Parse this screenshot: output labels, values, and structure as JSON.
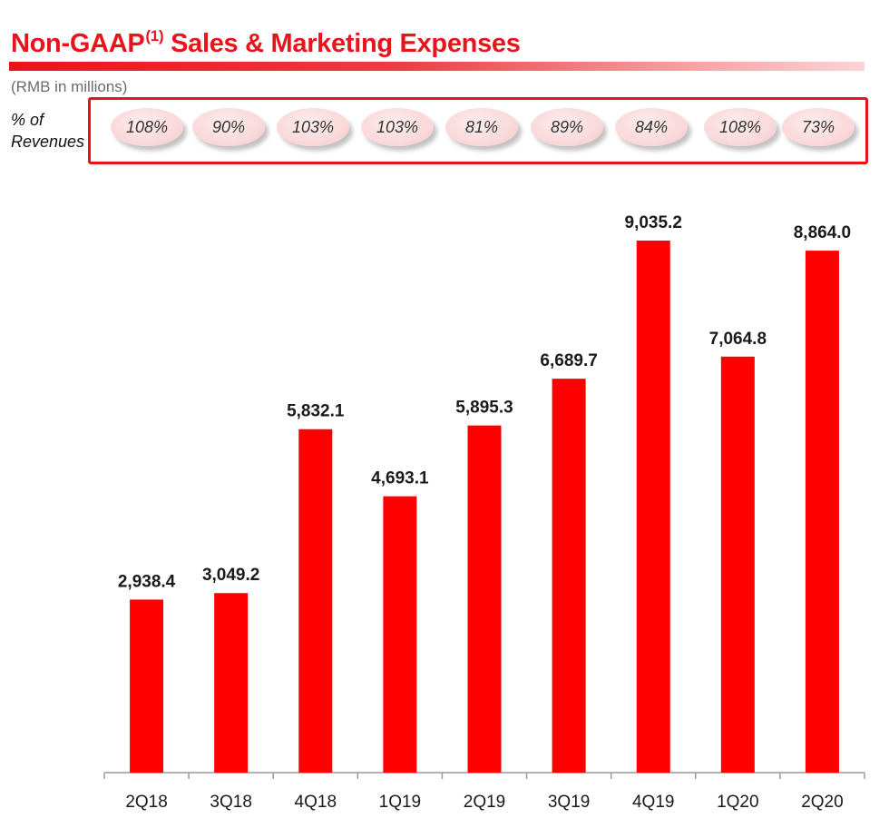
{
  "header": {
    "title_main": "Non-GAAP",
    "title_sup": "(1)",
    "title_rest": " Sales & Marketing Expenses",
    "subtitle": "(RMB in millions)"
  },
  "percent_row": {
    "label_line1": "% of",
    "label_line2": "Revenues",
    "values": [
      "108%",
      "90%",
      "103%",
      "103%",
      "81%",
      "89%",
      "84%",
      "108%",
      "73%"
    ]
  },
  "colors": {
    "bar": "#ff0000",
    "accent": "#e8141c",
    "highlight_border": "#e8141c"
  },
  "chart_data": {
    "type": "bar",
    "title": "Non-GAAP(1) Sales & Marketing Expenses",
    "ylabel": "RMB in millions",
    "xlabel": "",
    "categories": [
      "2Q18",
      "3Q18",
      "4Q18",
      "1Q19",
      "2Q19",
      "3Q19",
      "4Q19",
      "1Q20",
      "2Q20"
    ],
    "values": [
      2938.4,
      3049.2,
      5832.1,
      4693.1,
      5895.3,
      6689.7,
      9035.2,
      7064.8,
      8864.0
    ],
    "value_labels": [
      "2,938.4",
      "3,049.2",
      "5,832.1",
      "4,693.1",
      "5,895.3",
      "6,689.7",
      "9,035.2",
      "7,064.8",
      "8,864.0"
    ],
    "ylim": [
      0,
      9035.2
    ],
    "grid": false,
    "legend": "none"
  }
}
